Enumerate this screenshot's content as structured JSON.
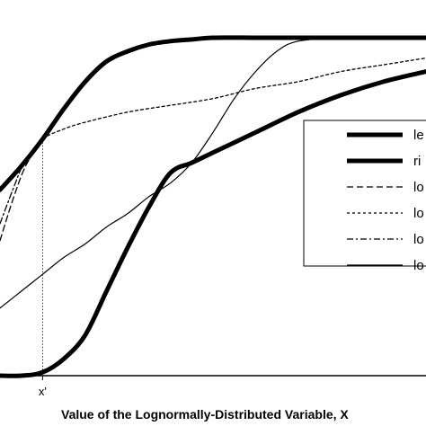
{
  "chart_data": {
    "type": "line",
    "title": "",
    "xlabel": "Value of the Lognormally-Distributed Variable, X",
    "ylabel": "",
    "x_tick_labels": [
      "x'"
    ],
    "x_marker": 0.1,
    "xlim": [
      0,
      1
    ],
    "ylim": [
      0,
      1
    ],
    "grid": false,
    "legend_position": "right",
    "series": [
      {
        "name": "le",
        "style": "thick-solid",
        "color": "#000000",
        "x": [
          0,
          0.05,
          0.1,
          0.15,
          0.2,
          0.25,
          0.3,
          0.35,
          0.4,
          0.45,
          0.5,
          0.6,
          0.7,
          0.8,
          0.9,
          1
        ],
        "y": [
          0.55,
          0.62,
          0.7,
          0.79,
          0.87,
          0.93,
          0.96,
          0.98,
          0.99,
          0.995,
          1.0,
          1.0,
          1.0,
          1.0,
          1.0,
          1.0
        ]
      },
      {
        "name": "ri",
        "style": "thick-solid",
        "color": "#000000",
        "x": [
          0,
          0.05,
          0.1,
          0.15,
          0.2,
          0.25,
          0.3,
          0.35,
          0.4,
          0.45,
          0.5,
          0.6,
          0.7,
          0.8,
          0.9,
          1
        ],
        "y": [
          0.0,
          0.0,
          0.01,
          0.05,
          0.12,
          0.25,
          0.38,
          0.5,
          0.6,
          0.63,
          0.66,
          0.72,
          0.78,
          0.83,
          0.87,
          0.9
        ]
      },
      {
        "name": "lo",
        "style": "dashed",
        "color": "#000000",
        "x": [
          0,
          0.03,
          0.06,
          0.1
        ],
        "y": [
          0.4,
          0.52,
          0.62,
          0.7
        ]
      },
      {
        "name": "lo",
        "style": "dotted",
        "color": "#000000",
        "x": [
          0.06,
          0.1,
          0.15,
          0.2,
          0.3,
          0.4,
          0.5,
          0.6,
          0.7,
          0.8,
          0.9,
          1.0
        ],
        "y": [
          0.64,
          0.7,
          0.73,
          0.75,
          0.78,
          0.8,
          0.82,
          0.85,
          0.87,
          0.9,
          0.92,
          0.94
        ]
      },
      {
        "name": "lo",
        "style": "dash-dot",
        "color": "#000000",
        "x": [
          0,
          0.03,
          0.06,
          0.1
        ],
        "y": [
          0.45,
          0.55,
          0.64,
          0.7
        ]
      },
      {
        "name": "lo",
        "style": "thin-solid",
        "color": "#000000",
        "x": [
          0,
          0.05,
          0.1,
          0.15,
          0.2,
          0.25,
          0.3,
          0.35,
          0.4,
          0.45,
          0.5,
          0.55,
          0.6,
          0.65,
          0.7,
          0.8,
          0.9,
          1
        ],
        "y": [
          0.2,
          0.25,
          0.3,
          0.35,
          0.39,
          0.44,
          0.48,
          0.53,
          0.57,
          0.63,
          0.72,
          0.82,
          0.9,
          0.96,
          0.99,
          1.0,
          1.0,
          1.0
        ]
      }
    ]
  }
}
